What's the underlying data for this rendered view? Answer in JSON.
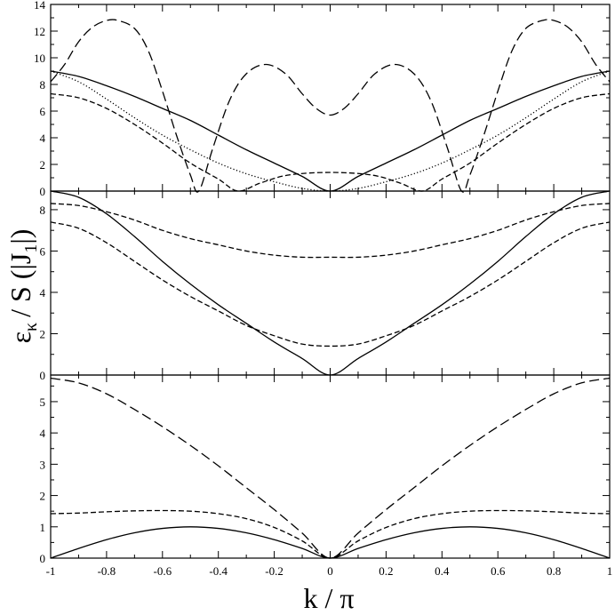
{
  "chart_data": [
    {
      "type": "line",
      "panel": "top",
      "xlim": [
        -1,
        1
      ],
      "ylim": [
        0,
        14
      ],
      "yticks": [
        0,
        2,
        4,
        6,
        8,
        10,
        12,
        14
      ],
      "grid": false,
      "series": [
        {
          "style": "solid",
          "x": [
            -1,
            -0.9,
            -0.8,
            -0.7,
            -0.6,
            -0.5,
            -0.4,
            -0.3,
            -0.2,
            -0.1,
            0,
            0.1,
            0.2,
            0.3,
            0.4,
            0.5,
            0.6,
            0.7,
            0.8,
            0.9,
            1
          ],
          "y": [
            9.0,
            8.6,
            7.9,
            7.1,
            6.2,
            5.3,
            4.2,
            3.1,
            2.1,
            1.1,
            0.0,
            1.1,
            2.1,
            3.1,
            4.2,
            5.3,
            6.2,
            7.1,
            7.9,
            8.6,
            9.0
          ]
        },
        {
          "style": "dotted",
          "x": [
            -1,
            -0.9,
            -0.8,
            -0.7,
            -0.6,
            -0.5,
            -0.4,
            -0.3,
            -0.2,
            -0.1,
            0,
            0.1,
            0.2,
            0.3,
            0.4,
            0.5,
            0.6,
            0.7,
            0.8,
            0.9,
            1
          ],
          "y": [
            9.0,
            8.2,
            6.9,
            5.5,
            4.2,
            3.1,
            2.1,
            1.3,
            0.7,
            0.2,
            0.0,
            0.2,
            0.7,
            1.3,
            2.1,
            3.1,
            4.2,
            5.5,
            6.9,
            8.2,
            9.0
          ]
        },
        {
          "style": "short-dash",
          "x": [
            -1,
            -0.9,
            -0.8,
            -0.7,
            -0.6,
            -0.5,
            -0.4,
            -0.33,
            -0.25,
            -0.15,
            0,
            0.15,
            0.25,
            0.33,
            0.4,
            0.5,
            0.6,
            0.7,
            0.8,
            0.9,
            1
          ],
          "y": [
            7.3,
            7.0,
            6.2,
            5.0,
            3.6,
            2.1,
            0.9,
            0.0,
            0.6,
            1.2,
            1.4,
            1.2,
            0.6,
            0.0,
            0.9,
            2.1,
            3.6,
            5.0,
            6.2,
            7.0,
            7.3
          ]
        },
        {
          "style": "long-dash",
          "x": [
            -1,
            -0.95,
            -0.9,
            -0.85,
            -0.8,
            -0.76,
            -0.7,
            -0.65,
            -0.6,
            -0.55,
            -0.5,
            -0.47,
            -0.42,
            -0.36,
            -0.3,
            -0.23,
            -0.16,
            -0.1,
            -0.05,
            0,
            0.05,
            0.1,
            0.16,
            0.23,
            0.3,
            0.36,
            0.42,
            0.47,
            0.5,
            0.55,
            0.6,
            0.65,
            0.7,
            0.76,
            0.8,
            0.85,
            0.9,
            0.95,
            1
          ],
          "y": [
            8.2,
            9.5,
            11.2,
            12.3,
            12.8,
            12.8,
            12.2,
            10.5,
            7.5,
            4.2,
            1.2,
            0.0,
            3.2,
            6.8,
            8.8,
            9.5,
            8.8,
            7.3,
            6.2,
            5.7,
            6.2,
            7.3,
            8.8,
            9.5,
            8.8,
            6.8,
            3.2,
            0.0,
            1.2,
            4.2,
            7.5,
            10.5,
            12.2,
            12.8,
            12.8,
            12.3,
            11.2,
            9.5,
            8.2
          ]
        }
      ]
    },
    {
      "type": "line",
      "panel": "middle",
      "xlim": [
        -1,
        1
      ],
      "ylim": [
        0,
        8.9
      ],
      "yticks": [
        0,
        2,
        4,
        6,
        8
      ],
      "grid": false,
      "series": [
        {
          "style": "solid",
          "x": [
            -1,
            -0.9,
            -0.8,
            -0.7,
            -0.6,
            -0.5,
            -0.4,
            -0.3,
            -0.2,
            -0.1,
            0,
            0.1,
            0.2,
            0.3,
            0.4,
            0.5,
            0.6,
            0.7,
            0.8,
            0.9,
            1
          ],
          "y": [
            8.9,
            8.6,
            7.8,
            6.7,
            5.5,
            4.4,
            3.4,
            2.5,
            1.6,
            0.8,
            0.0,
            0.8,
            1.6,
            2.5,
            3.4,
            4.4,
            5.5,
            6.7,
            7.8,
            8.6,
            8.9
          ]
        },
        {
          "style": "short-dash",
          "x": [
            -1,
            -0.9,
            -0.8,
            -0.7,
            -0.6,
            -0.5,
            -0.4,
            -0.3,
            -0.2,
            -0.1,
            0,
            0.1,
            0.2,
            0.3,
            0.4,
            0.5,
            0.6,
            0.7,
            0.8,
            0.9,
            1
          ],
          "y": [
            7.4,
            7.1,
            6.4,
            5.5,
            4.6,
            3.8,
            3.1,
            2.4,
            1.9,
            1.5,
            1.4,
            1.5,
            1.9,
            2.4,
            3.1,
            3.8,
            4.6,
            5.5,
            6.4,
            7.1,
            7.4
          ]
        },
        {
          "style": "short-dash",
          "x": [
            -1,
            -0.9,
            -0.8,
            -0.7,
            -0.6,
            -0.5,
            -0.4,
            -0.3,
            -0.2,
            -0.1,
            0,
            0.1,
            0.2,
            0.3,
            0.4,
            0.5,
            0.6,
            0.7,
            0.8,
            0.9,
            1
          ],
          "y": [
            8.3,
            8.2,
            7.9,
            7.5,
            7.0,
            6.6,
            6.3,
            6.0,
            5.8,
            5.7,
            5.7,
            5.7,
            5.8,
            6.0,
            6.3,
            6.6,
            7.0,
            7.5,
            7.9,
            8.2,
            8.3
          ]
        }
      ]
    },
    {
      "type": "line",
      "panel": "bottom",
      "xlim": [
        -1,
        1
      ],
      "ylim": [
        0,
        5.85
      ],
      "yticks": [
        0,
        1,
        2,
        3,
        4,
        5
      ],
      "xticks": [
        -1,
        -0.8,
        -0.6,
        -0.4,
        -0.2,
        0,
        0.2,
        0.4,
        0.6,
        0.8,
        1
      ],
      "xtick_labels": [
        "-1",
        "-0.8",
        "-0.6",
        "-0.4",
        "-0.2",
        "0",
        "0.2",
        "0.4",
        "0.6",
        "0.8",
        "1"
      ],
      "grid": false,
      "series": [
        {
          "style": "solid",
          "x": [
            -1,
            -0.9,
            -0.8,
            -0.7,
            -0.6,
            -0.5,
            -0.4,
            -0.3,
            -0.2,
            -0.1,
            0,
            0.1,
            0.2,
            0.3,
            0.4,
            0.5,
            0.6,
            0.7,
            0.8,
            0.9,
            1
          ],
          "y": [
            0.0,
            0.31,
            0.59,
            0.81,
            0.95,
            1.0,
            0.95,
            0.81,
            0.59,
            0.31,
            0.0,
            0.31,
            0.59,
            0.81,
            0.95,
            1.0,
            0.95,
            0.81,
            0.59,
            0.31,
            0.0
          ]
        },
        {
          "style": "short-dash",
          "x": [
            -1,
            -0.9,
            -0.8,
            -0.7,
            -0.6,
            -0.5,
            -0.4,
            -0.3,
            -0.2,
            -0.1,
            0,
            0.1,
            0.2,
            0.3,
            0.4,
            0.5,
            0.6,
            0.7,
            0.8,
            0.9,
            1
          ],
          "y": [
            1.42,
            1.44,
            1.48,
            1.51,
            1.52,
            1.5,
            1.42,
            1.26,
            0.98,
            0.55,
            0.0,
            0.55,
            0.98,
            1.26,
            1.42,
            1.5,
            1.52,
            1.51,
            1.48,
            1.44,
            1.42
          ]
        },
        {
          "style": "long-dash",
          "x": [
            -1,
            -0.9,
            -0.8,
            -0.7,
            -0.6,
            -0.5,
            -0.4,
            -0.3,
            -0.2,
            -0.1,
            0,
            0.1,
            0.2,
            0.3,
            0.4,
            0.5,
            0.6,
            0.7,
            0.8,
            0.9,
            1
          ],
          "y": [
            5.75,
            5.6,
            5.25,
            4.75,
            4.2,
            3.6,
            2.95,
            2.25,
            1.55,
            0.8,
            0.0,
            0.8,
            1.55,
            2.25,
            2.95,
            3.6,
            4.2,
            4.75,
            5.25,
            5.6,
            5.75
          ]
        }
      ]
    }
  ],
  "axes": {
    "xlabel": "k / π",
    "ylabel_main": "ε",
    "ylabel_sub": "κ",
    "ylabel_mid": "/ S (|J",
    "ylabel_sub2": "1",
    "ylabel_end": "|)"
  }
}
